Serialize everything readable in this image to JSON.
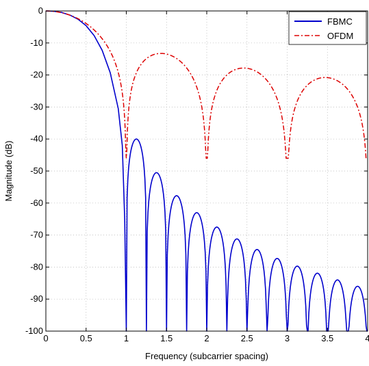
{
  "chart_data": {
    "type": "line",
    "title": "",
    "xlabel": "Frequency (subcarrier spacing)",
    "ylabel": "Magnitude (dB)",
    "xlim": [
      0,
      4
    ],
    "ylim": [
      -100,
      0
    ],
    "xticks": [
      0,
      0.5,
      1,
      1.5,
      2,
      2.5,
      3,
      3.5,
      4
    ],
    "xtick_labels": [
      "0",
      "0.5",
      "1",
      "1.5",
      "2",
      "2.5",
      "3",
      "3.5",
      "4"
    ],
    "yticks": [
      0,
      -10,
      -20,
      -30,
      -40,
      -50,
      -60,
      -70,
      -80,
      -90,
      -100
    ],
    "ytick_labels": [
      "0",
      "-10",
      "-20",
      "-30",
      "-40",
      "-50",
      "-60",
      "-70",
      "-80",
      "-90",
      "-100"
    ],
    "grid": true,
    "legend_position": "top-right",
    "series": [
      {
        "name": "FBMC",
        "color": "#0000cc",
        "style": "solid",
        "main_lobe": [
          [
            0,
            0
          ],
          [
            0.1,
            -0.1
          ],
          [
            0.2,
            -0.5
          ],
          [
            0.3,
            -1.3
          ],
          [
            0.4,
            -2.6
          ],
          [
            0.5,
            -4.6
          ],
          [
            0.6,
            -7.7
          ],
          [
            0.7,
            -12.3
          ],
          [
            0.8,
            -19.3
          ],
          [
            0.9,
            -30.5
          ],
          [
            0.95,
            -42
          ],
          [
            0.98,
            -65
          ],
          [
            1.0,
            -100
          ]
        ],
        "nulls": [
          1.0,
          1.25,
          1.5,
          1.75,
          2.0,
          2.25,
          2.5,
          2.75,
          3.0,
          3.25,
          3.5,
          3.75,
          4.0
        ],
        "sidelobe_peaks": [
          -40,
          -50.5,
          -57.7,
          -63,
          -67.5,
          -71.2,
          -74.5,
          -77.3,
          -79.7,
          -81.9,
          -84,
          -86
        ]
      },
      {
        "name": "OFDM",
        "color": "#dd0000",
        "style": "dashdot",
        "formula": "sinc",
        "range": [
          0,
          4
        ]
      }
    ]
  }
}
